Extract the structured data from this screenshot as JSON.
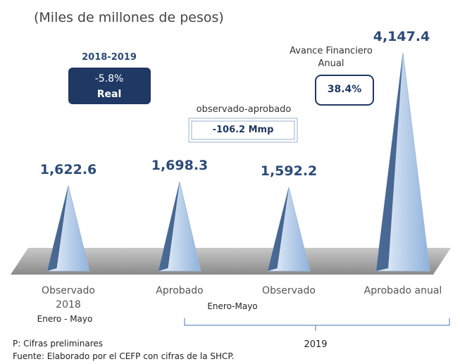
{
  "chart_data": {
    "type": "pyramid",
    "subtitle": "(Miles de millones de pesos)",
    "categories": [
      "Observado 2018",
      "Aprobado",
      "Observado",
      "Aprobado anual"
    ],
    "values": [
      1622.6,
      1698.3,
      1592.2,
      4147.4
    ],
    "value_labels": [
      "1,622.6",
      "1,698.3",
      "1,592.2",
      "4,147.4"
    ],
    "annotations": {
      "change_period": "2018-2019",
      "change_pct": "-5.8%",
      "change_basis": "Real",
      "diff_label": "observado-aprobado",
      "diff_value": "-106.2 Mmp",
      "progress_label": "Avance Financiero Anual",
      "progress_value": "38.4%",
      "period_2018": "Enero - Mayo",
      "period_2019": "Enero-Mayo",
      "year": "2019",
      "note": "P: Cifras preliminares",
      "source": "Fuente: Elaborado por el CEFP con cifras de la SHCP."
    }
  }
}
